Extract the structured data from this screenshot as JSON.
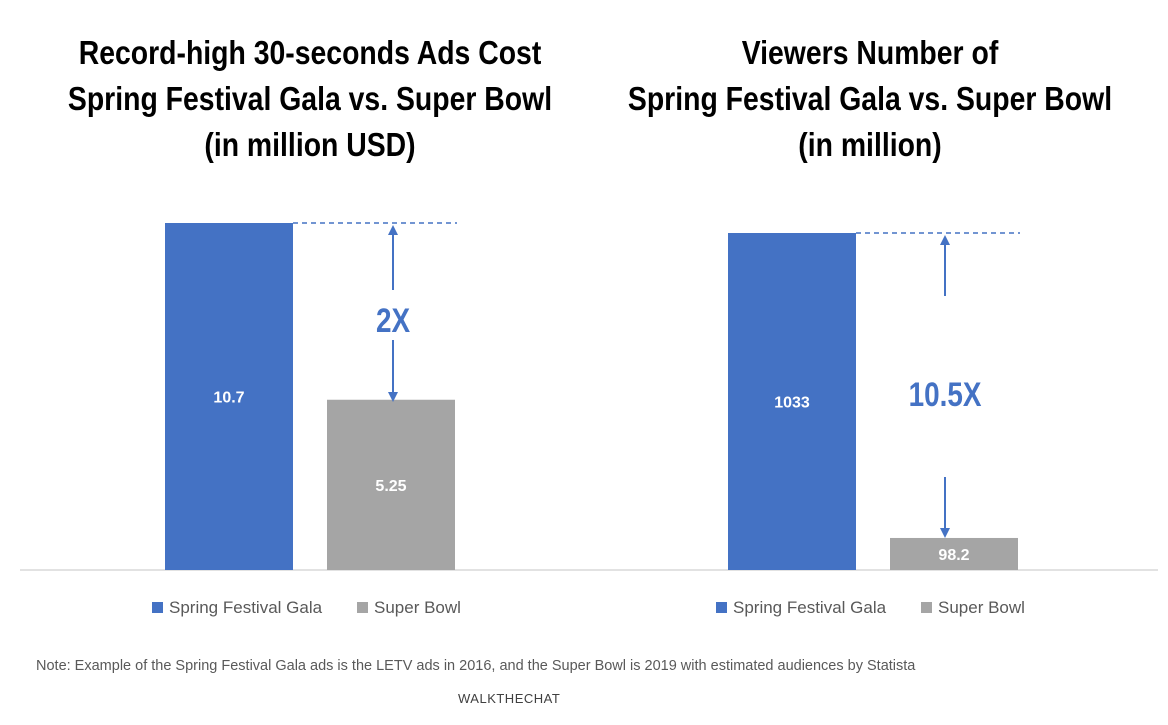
{
  "chart_data": [
    {
      "type": "bar",
      "title": [
        "Record-high 30-seconds Ads Cost",
        "Spring Festival Gala vs. Super Bowl",
        "(in million USD)"
      ],
      "categories": [
        "Spring Festival Gala",
        "Super Bowl"
      ],
      "values": [
        10.7,
        5.25
      ],
      "data_labels": [
        "10.7",
        "5.25"
      ],
      "annotation": "2X",
      "ylim": [
        0,
        10.7
      ],
      "grid": false,
      "legend": "bottom",
      "colors": [
        "#4472c4",
        "#a5a5a5"
      ]
    },
    {
      "type": "bar",
      "title": [
        "Viewers Number of",
        "Spring Festival Gala vs. Super Bowl",
        "(in million)"
      ],
      "categories": [
        "Spring Festival Gala",
        "Super Bowl"
      ],
      "values": [
        1033,
        98.2
      ],
      "data_labels": [
        "1033",
        "98.2"
      ],
      "annotation": "10.5X",
      "ylim": [
        0,
        1033
      ],
      "grid": false,
      "legend": "bottom",
      "colors": [
        "#4472c4",
        "#a5a5a5"
      ]
    }
  ],
  "note": "Note: Example of the Spring Festival Gala ads is the LETV ads in 2016, and the Super Bowl is 2019 with estimated audiences by Statista",
  "brand": "WALKTHECHAT",
  "colors": {
    "annotation": "#4472c4",
    "axis": "#d9d9d9"
  }
}
